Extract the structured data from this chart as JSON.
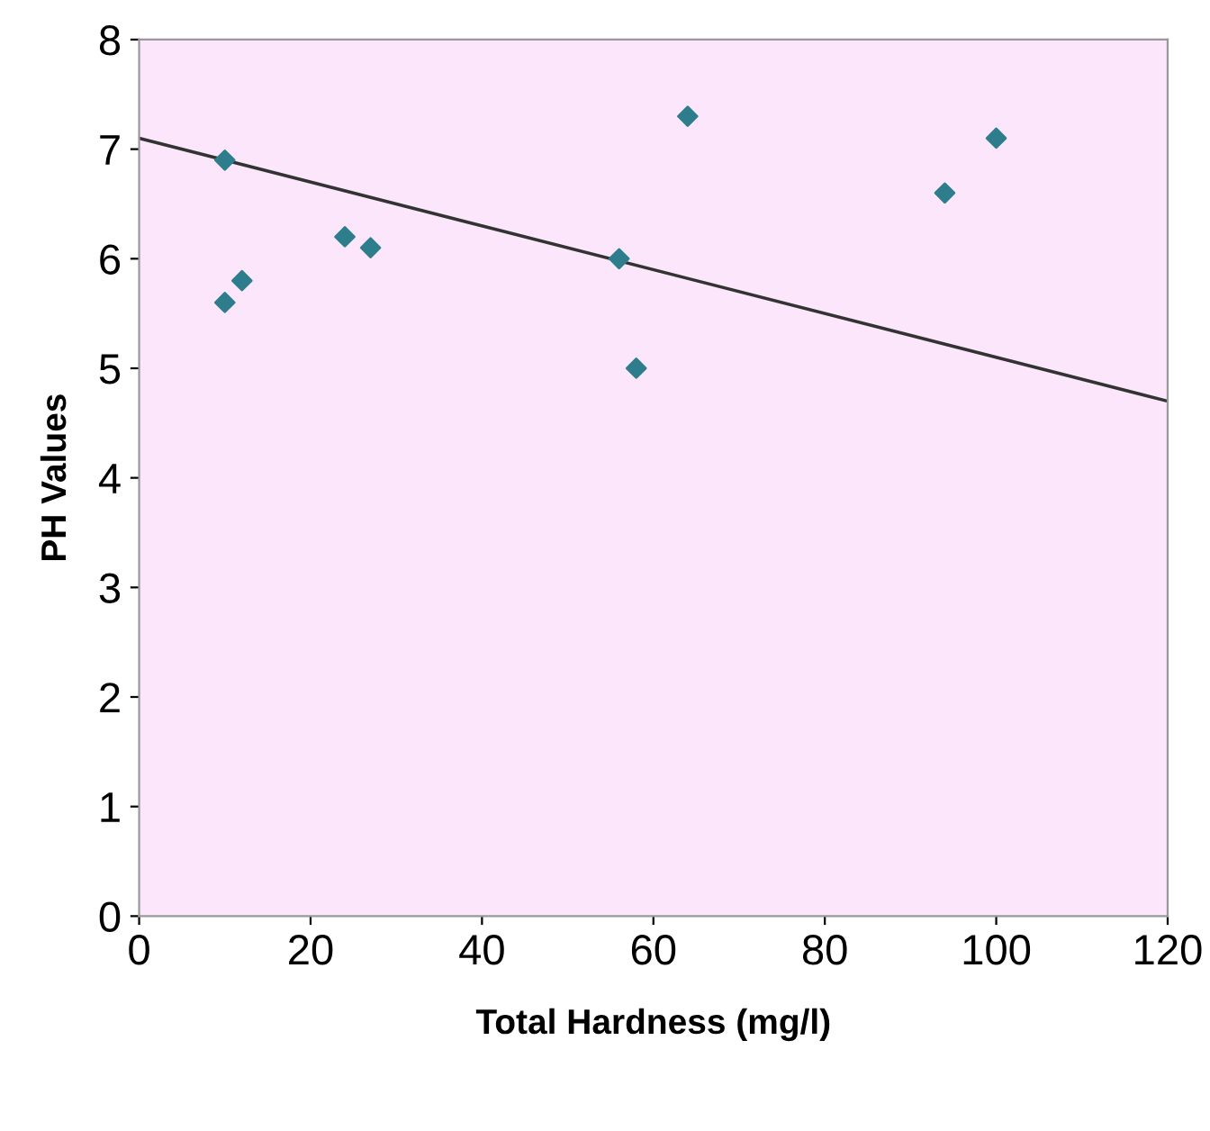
{
  "chart_data": {
    "type": "scatter",
    "xlabel": "Total Hardness (mg/l)",
    "ylabel": "PH Values",
    "series": [
      {
        "color": "#2e7d8c",
        "marker": "diamond",
        "x": [
          10,
          10,
          12,
          24,
          27,
          56,
          58,
          64,
          94,
          100
        ],
        "values": [
          6.9,
          5.6,
          5.8,
          6.2,
          6.1,
          6.0,
          5.0,
          7.3,
          6.6,
          7.1
        ]
      },
      {
        "type": "line",
        "color": "#333333",
        "marker": "none",
        "x": [
          0,
          120
        ],
        "values": [
          7.1,
          4.7
        ]
      }
    ],
    "xlim": [
      0,
      120
    ],
    "ylim": [
      0,
      8
    ],
    "xticks": [
      0,
      20,
      40,
      60,
      80,
      100,
      120
    ],
    "yticks": [
      0,
      1,
      2,
      3,
      4,
      5,
      6,
      7,
      8
    ],
    "grid": false,
    "legend": false
  }
}
